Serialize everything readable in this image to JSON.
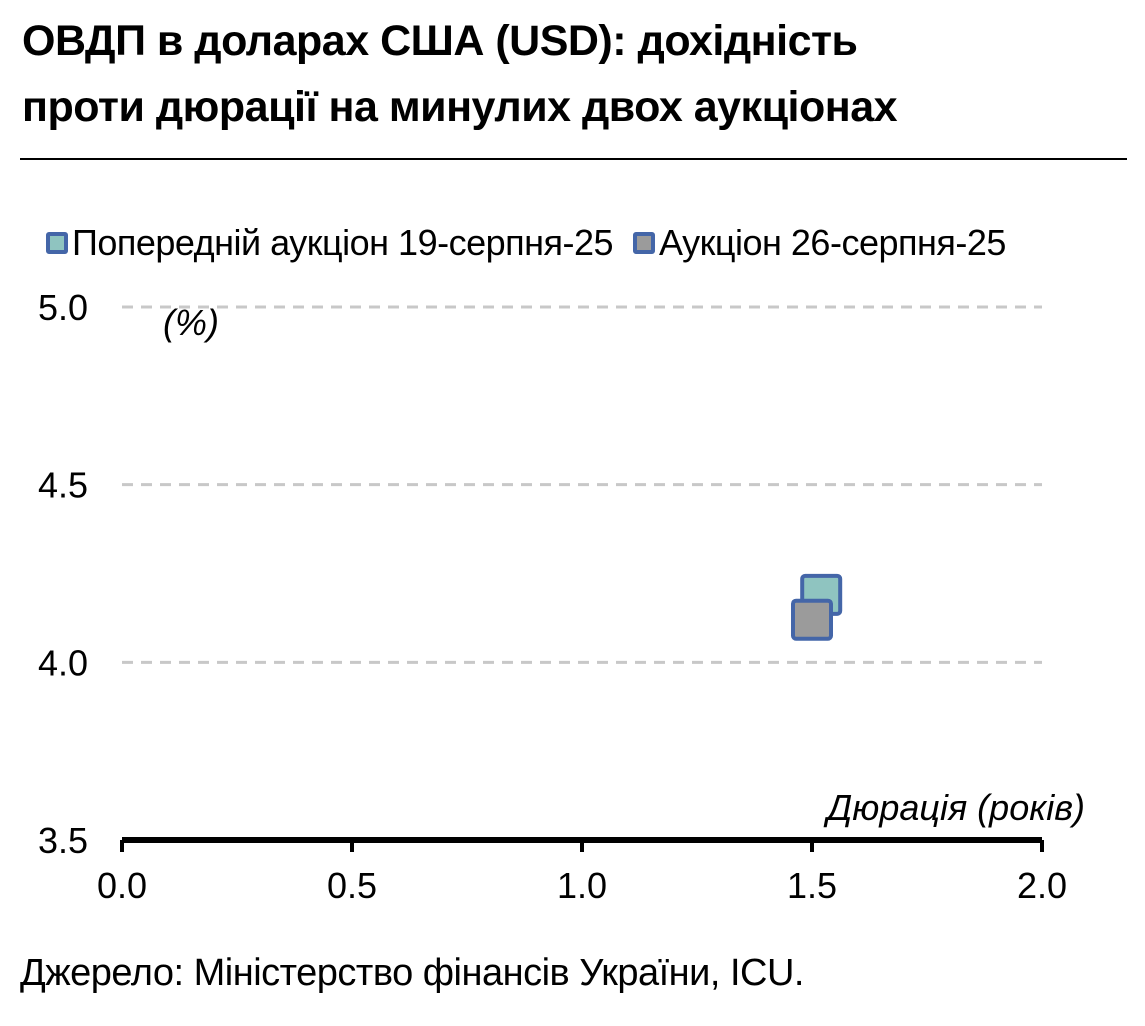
{
  "title": {
    "line1": "ОВДП в доларах США (USD): дохідність",
    "line2": "проти дюрації на минулих двох аукціонах"
  },
  "legend": [
    {
      "label": "Попередній аукціон 19-серпня-25",
      "fill": "#8fc4c0",
      "stroke": "#4466a8"
    },
    {
      "label": "Аукціон 26-серпня-25",
      "fill": "#9b9b9b",
      "stroke": "#4466a8"
    }
  ],
  "source": "Джерело: Міністерство фінансів України, ICU.",
  "chart_data": {
    "type": "scatter",
    "xlabel": "Дюрація (років)",
    "ylabel": "(%)",
    "xlim": [
      0.0,
      2.0
    ],
    "ylim": [
      3.5,
      5.0
    ],
    "x_ticks": [
      "0.0",
      "0.5",
      "1.0",
      "1.5",
      "2.0"
    ],
    "y_ticks": [
      "3.5",
      "4.0",
      "4.5",
      "5.0"
    ],
    "grid": "horizontal-dashed",
    "legend_position": "top",
    "series": [
      {
        "name": "Попередній аукціон 19-серпня-25",
        "points": [
          {
            "x": 1.52,
            "y": 4.19
          }
        ]
      },
      {
        "name": "Аукціон 26-серпня-25",
        "points": [
          {
            "x": 1.5,
            "y": 4.12
          }
        ]
      }
    ]
  }
}
